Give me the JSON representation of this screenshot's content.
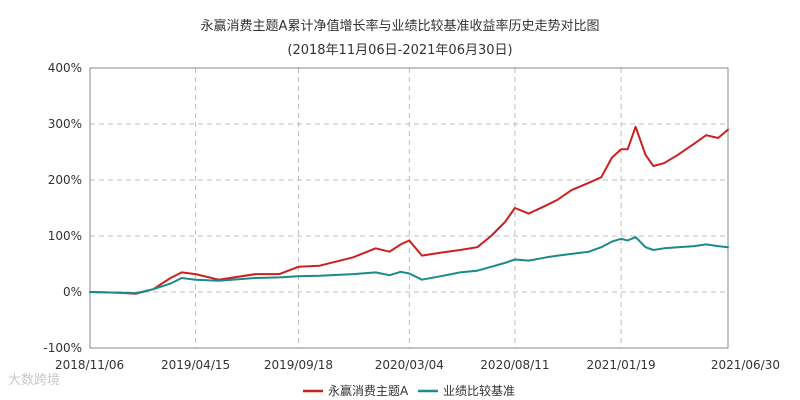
{
  "chart_data": {
    "type": "line",
    "title": "永赢消费主题A累计净值增长率与业绩比较基准收益率历史走势对比图",
    "subtitle": "(2018年11月06日-2021年06月30日)",
    "xlabel": "",
    "ylabel": "",
    "x_ticks": [
      "2018/11/06",
      "2019/04/15",
      "2019/09/18",
      "2020/03/04",
      "2020/08/11",
      "2021/01/19",
      "2021/06/30"
    ],
    "y_ticks": [
      "400%",
      "300%",
      "200%",
      "100%",
      "0%",
      "-100%"
    ],
    "ylim": [
      -100,
      400
    ],
    "grid": true,
    "legend_position": "bottom",
    "x": [
      "2018-11-06",
      "2018-12-15",
      "2019-01-15",
      "2019-02-10",
      "2019-03-08",
      "2019-03-25",
      "2019-04-15",
      "2019-05-20",
      "2019-07-15",
      "2019-08-20",
      "2019-09-18",
      "2019-10-20",
      "2019-12-10",
      "2020-01-13",
      "2020-02-03",
      "2020-02-20",
      "2020-03-04",
      "2020-03-23",
      "2020-04-20",
      "2020-05-20",
      "2020-06-15",
      "2020-07-06",
      "2020-07-27",
      "2020-08-11",
      "2020-09-01",
      "2020-09-28",
      "2020-10-15",
      "2020-11-05",
      "2020-12-01",
      "2020-12-20",
      "2021-01-05",
      "2021-01-19",
      "2021-01-29",
      "2021-02-10",
      "2021-02-25",
      "2021-03-09",
      "2021-03-25",
      "2021-04-15",
      "2021-05-10",
      "2021-05-28",
      "2021-06-15",
      "2021-06-30"
    ],
    "series": [
      {
        "name": "永赢消费主题A",
        "color": "#cc1f1f",
        "values": [
          0,
          -1,
          -3,
          5,
          25,
          35,
          32,
          22,
          32,
          32,
          45,
          47,
          62,
          78,
          72,
          85,
          92,
          65,
          70,
          75,
          80,
          100,
          125,
          150,
          140,
          155,
          165,
          182,
          195,
          205,
          240,
          255,
          255,
          295,
          245,
          225,
          230,
          245,
          265,
          280,
          275,
          290
        ]
      },
      {
        "name": "业绩比较基准",
        "color": "#1a8a8a",
        "values": [
          0,
          -1,
          -2,
          5,
          15,
          25,
          22,
          20,
          25,
          26,
          28,
          29,
          32,
          35,
          30,
          36,
          33,
          22,
          28,
          35,
          38,
          45,
          52,
          58,
          56,
          62,
          65,
          68,
          72,
          80,
          90,
          95,
          92,
          98,
          80,
          75,
          78,
          80,
          82,
          85,
          82,
          80
        ]
      }
    ]
  },
  "legend": {
    "items": [
      {
        "name": "永赢消费主题A",
        "color": "#cc1f1f"
      },
      {
        "name": "业绩比较基准",
        "color": "#1a8a8a"
      }
    ]
  },
  "watermark": {
    "text": "大数跨境"
  }
}
